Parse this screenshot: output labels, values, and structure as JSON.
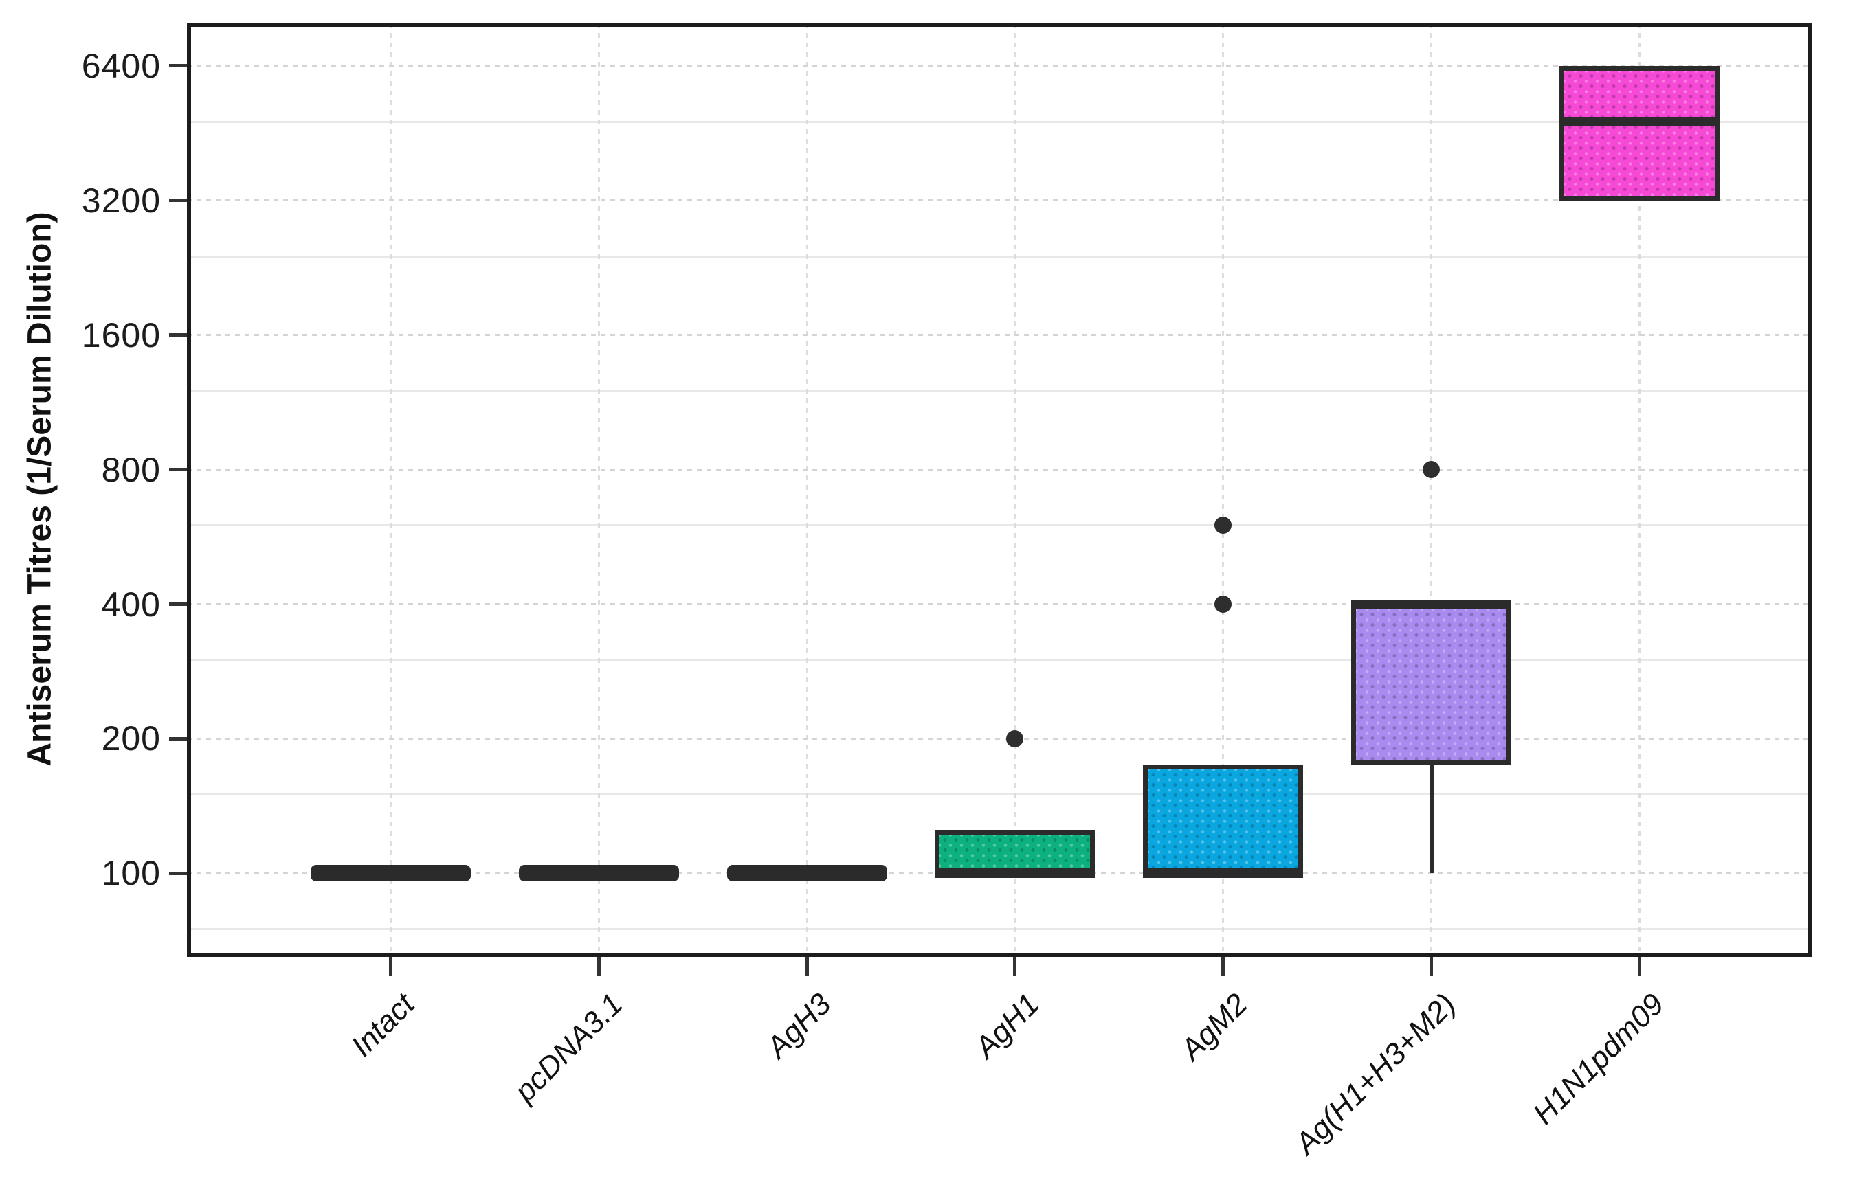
{
  "figure": {
    "background": "#ffffff"
  },
  "chart_data": {
    "type": "boxplot",
    "title": "",
    "xlabel": "",
    "ylabel": "Antiserum Titres (1/Serum Dilution)",
    "yscale": "log2",
    "y_domain": [
      65,
      7970
    ],
    "yticks": [
      100,
      200,
      400,
      800,
      1600,
      3200,
      6400
    ],
    "minor_gridlines": [
      75,
      150,
      300,
      600,
      1200,
      2400,
      4800
    ],
    "grid": true,
    "legend_position": "none",
    "categories": [
      "Intact",
      "pcDNA3.1",
      "AgH3",
      "AgH1",
      "AgM2",
      "Ag(H1+H3+M2)",
      "H1N1pdm09"
    ],
    "boxes": [
      {
        "category": "Intact",
        "q1": 100,
        "median": 100,
        "q3": 100,
        "whisker_low": null,
        "whisker_high": null,
        "outliers": [],
        "fill": null
      },
      {
        "category": "pcDNA3.1",
        "q1": 100,
        "median": 100,
        "q3": 100,
        "whisker_low": null,
        "whisker_high": null,
        "outliers": [],
        "fill": null
      },
      {
        "category": "AgH3",
        "q1": 100,
        "median": 100,
        "q3": 100,
        "whisker_low": null,
        "whisker_high": null,
        "outliers": [],
        "fill": null
      },
      {
        "category": "AgH1",
        "q1": 100,
        "median": 100,
        "q3": 125,
        "whisker_low": null,
        "whisker_high": null,
        "outliers": [
          200
        ],
        "fill": "#0DB180"
      },
      {
        "category": "AgM2",
        "q1": 100,
        "median": 100,
        "q3": 175,
        "whisker_low": null,
        "whisker_high": null,
        "outliers": [
          400,
          600
        ],
        "fill": "#0AA6E0"
      },
      {
        "category": "Ag(H1+H3+M2)",
        "q1": 175,
        "median": 400,
        "q3": 400,
        "whisker_low": 100,
        "whisker_high": null,
        "outliers": [
          800
        ],
        "fill": "#A98BF0"
      },
      {
        "category": "H1N1pdm09",
        "q1": 3200,
        "median": 4800,
        "q3": 6400,
        "whisker_low": null,
        "whisker_high": null,
        "outliers": [],
        "fill": "#F649D6"
      }
    ],
    "colors": {
      "box_line": "#2b2b2b",
      "outlier": "#2e2e2e",
      "grid_major": "#d4d4d4",
      "grid_minor": "#e8e8e8",
      "axis_border": "#1c1c1c",
      "tick": "#333333",
      "text": "#111111"
    }
  }
}
